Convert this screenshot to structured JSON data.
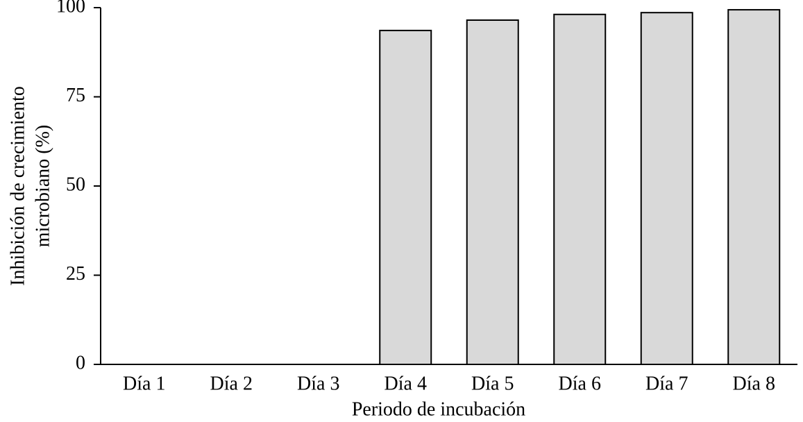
{
  "chart_data": {
    "type": "bar",
    "x_label": "Periodo de incubación",
    "y_label": [
      "Inhibición de crecimiento",
      "microbiano (%)"
    ],
    "categories": [
      "Día 1",
      "Día 2",
      "Día 3",
      "Día 4",
      "Día 5",
      "Día 6",
      "Día 7",
      "Día 8"
    ],
    "values": [
      0,
      0,
      0,
      93.6,
      96.5,
      98.1,
      98.6,
      99.4
    ],
    "color": "#d9d9d9",
    "ylim": [
      0,
      100
    ],
    "yticks": [
      0,
      25,
      50,
      75,
      100
    ]
  }
}
